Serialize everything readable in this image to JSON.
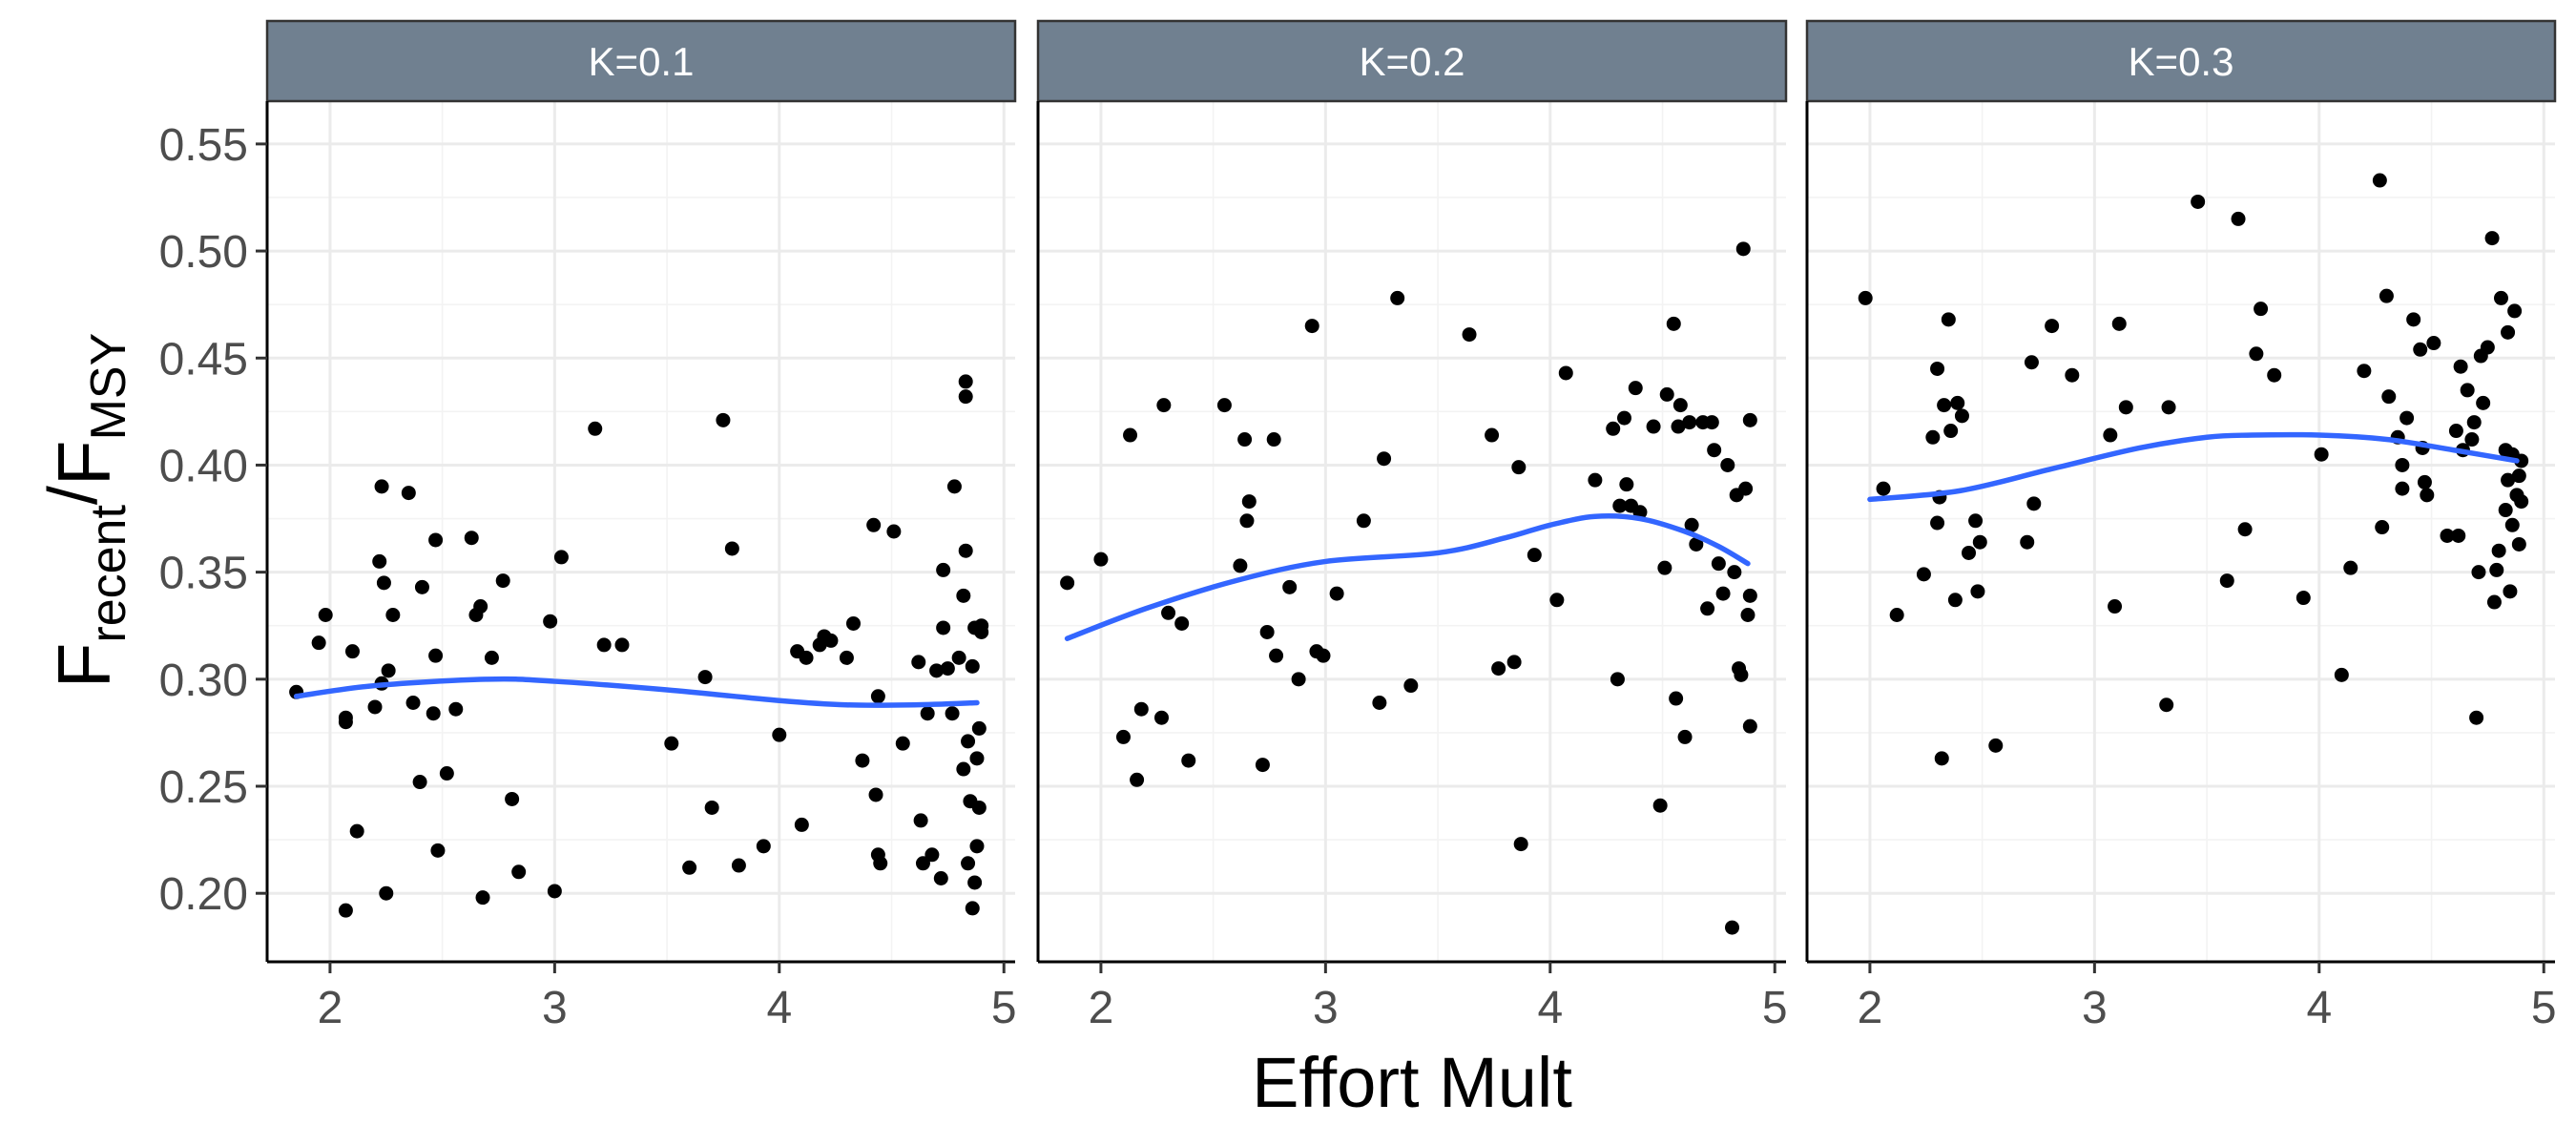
{
  "chart_data": {
    "type": "scatter",
    "xlabel": "Effort Mult",
    "ylabel": {
      "base1": "F",
      "sub1": "recent",
      "slash": "/",
      "base2": "F",
      "sub2": "MSY"
    },
    "xlim": [
      1.72,
      5.05
    ],
    "ylim": [
      0.168,
      0.57
    ],
    "x_ticks": [
      2,
      3,
      4,
      5
    ],
    "y_ticks": [
      0.2,
      0.25,
      0.3,
      0.35,
      0.4,
      0.45,
      0.5,
      0.55
    ],
    "x_tick_labels": [
      "2",
      "3",
      "4",
      "5"
    ],
    "y_tick_labels": [
      "0.20",
      "0.25",
      "0.30",
      "0.35",
      "0.40",
      "0.45",
      "0.50",
      "0.55"
    ],
    "colors": {
      "point": "#000000",
      "smooth": "#3366ff",
      "strip": "#708090",
      "grid": "#ebebeb"
    },
    "panels": [
      {
        "label": "K=0.1",
        "smooth": {
          "x": [
            1.85,
            2.2,
            2.7,
            3.0,
            3.5,
            4.0,
            4.3,
            4.6,
            4.88
          ],
          "y": [
            0.292,
            0.297,
            0.3,
            0.299,
            0.295,
            0.29,
            0.288,
            0.288,
            0.289
          ]
        },
        "points": [
          [
            1.85,
            0.294
          ],
          [
            1.95,
            0.317
          ],
          [
            1.98,
            0.33
          ],
          [
            2.07,
            0.192
          ],
          [
            2.07,
            0.28
          ],
          [
            2.07,
            0.282
          ],
          [
            2.1,
            0.313
          ],
          [
            2.12,
            0.229
          ],
          [
            2.2,
            0.287
          ],
          [
            2.22,
            0.355
          ],
          [
            2.23,
            0.298
          ],
          [
            2.23,
            0.39
          ],
          [
            2.24,
            0.345
          ],
          [
            2.25,
            0.2
          ],
          [
            2.26,
            0.304
          ],
          [
            2.28,
            0.33
          ],
          [
            2.35,
            0.387
          ],
          [
            2.37,
            0.289
          ],
          [
            2.4,
            0.252
          ],
          [
            2.41,
            0.343
          ],
          [
            2.46,
            0.284
          ],
          [
            2.47,
            0.311
          ],
          [
            2.47,
            0.365
          ],
          [
            2.48,
            0.22
          ],
          [
            2.52,
            0.256
          ],
          [
            2.56,
            0.286
          ],
          [
            2.63,
            0.366
          ],
          [
            2.65,
            0.33
          ],
          [
            2.67,
            0.334
          ],
          [
            2.68,
            0.198
          ],
          [
            2.72,
            0.31
          ],
          [
            2.77,
            0.346
          ],
          [
            2.81,
            0.244
          ],
          [
            2.84,
            0.21
          ],
          [
            2.98,
            0.327
          ],
          [
            3.0,
            0.201
          ],
          [
            3.03,
            0.357
          ],
          [
            3.18,
            0.417
          ],
          [
            3.22,
            0.316
          ],
          [
            3.3,
            0.316
          ],
          [
            3.52,
            0.27
          ],
          [
            3.6,
            0.212
          ],
          [
            3.67,
            0.301
          ],
          [
            3.7,
            0.24
          ],
          [
            3.75,
            0.421
          ],
          [
            3.79,
            0.361
          ],
          [
            3.82,
            0.213
          ],
          [
            3.93,
            0.222
          ],
          [
            4.0,
            0.274
          ],
          [
            4.08,
            0.313
          ],
          [
            4.1,
            0.232
          ],
          [
            4.12,
            0.31
          ],
          [
            4.18,
            0.316
          ],
          [
            4.2,
            0.32
          ],
          [
            4.23,
            0.318
          ],
          [
            4.3,
            0.31
          ],
          [
            4.33,
            0.326
          ],
          [
            4.37,
            0.262
          ],
          [
            4.42,
            0.372
          ],
          [
            4.43,
            0.246
          ],
          [
            4.44,
            0.218
          ],
          [
            4.44,
            0.292
          ],
          [
            4.45,
            0.214
          ],
          [
            4.51,
            0.369
          ],
          [
            4.55,
            0.27
          ],
          [
            4.62,
            0.308
          ],
          [
            4.63,
            0.234
          ],
          [
            4.64,
            0.214
          ],
          [
            4.66,
            0.284
          ],
          [
            4.68,
            0.218
          ],
          [
            4.7,
            0.304
          ],
          [
            4.72,
            0.207
          ],
          [
            4.73,
            0.351
          ],
          [
            4.73,
            0.324
          ],
          [
            4.75,
            0.305
          ],
          [
            4.77,
            0.284
          ],
          [
            4.78,
            0.39
          ],
          [
            4.8,
            0.31
          ],
          [
            4.82,
            0.258
          ],
          [
            4.82,
            0.339
          ],
          [
            4.83,
            0.432
          ],
          [
            4.83,
            0.439
          ],
          [
            4.83,
            0.36
          ],
          [
            4.84,
            0.214
          ],
          [
            4.84,
            0.271
          ],
          [
            4.85,
            0.243
          ],
          [
            4.86,
            0.193
          ],
          [
            4.86,
            0.306
          ],
          [
            4.87,
            0.324
          ],
          [
            4.87,
            0.205
          ],
          [
            4.88,
            0.222
          ],
          [
            4.88,
            0.263
          ],
          [
            4.89,
            0.277
          ],
          [
            4.89,
            0.24
          ],
          [
            4.9,
            0.325
          ],
          [
            4.9,
            0.322
          ]
        ]
      },
      {
        "label": "K=0.2",
        "smooth": {
          "x": [
            1.85,
            2.2,
            2.6,
            3.0,
            3.5,
            3.8,
            4.0,
            4.2,
            4.4,
            4.6,
            4.75,
            4.88
          ],
          "y": [
            0.319,
            0.333,
            0.346,
            0.355,
            0.359,
            0.366,
            0.372,
            0.376,
            0.375,
            0.369,
            0.362,
            0.354
          ]
        },
        "points": [
          [
            1.85,
            0.345
          ],
          [
            2.0,
            0.356
          ],
          [
            2.1,
            0.273
          ],
          [
            2.13,
            0.414
          ],
          [
            2.16,
            0.253
          ],
          [
            2.18,
            0.286
          ],
          [
            2.27,
            0.282
          ],
          [
            2.28,
            0.428
          ],
          [
            2.3,
            0.331
          ],
          [
            2.36,
            0.326
          ],
          [
            2.39,
            0.262
          ],
          [
            2.55,
            0.428
          ],
          [
            2.62,
            0.353
          ],
          [
            2.64,
            0.412
          ],
          [
            2.65,
            0.374
          ],
          [
            2.66,
            0.383
          ],
          [
            2.72,
            0.26
          ],
          [
            2.74,
            0.322
          ],
          [
            2.77,
            0.412
          ],
          [
            2.78,
            0.311
          ],
          [
            2.84,
            0.343
          ],
          [
            2.88,
            0.3
          ],
          [
            2.94,
            0.465
          ],
          [
            2.96,
            0.313
          ],
          [
            2.99,
            0.311
          ],
          [
            3.05,
            0.34
          ],
          [
            3.17,
            0.374
          ],
          [
            3.24,
            0.289
          ],
          [
            3.26,
            0.403
          ],
          [
            3.32,
            0.478
          ],
          [
            3.38,
            0.297
          ],
          [
            3.64,
            0.461
          ],
          [
            3.74,
            0.414
          ],
          [
            3.77,
            0.305
          ],
          [
            3.84,
            0.308
          ],
          [
            3.86,
            0.399
          ],
          [
            3.87,
            0.223
          ],
          [
            3.93,
            0.358
          ],
          [
            4.03,
            0.337
          ],
          [
            4.07,
            0.443
          ],
          [
            4.2,
            0.393
          ],
          [
            4.28,
            0.417
          ],
          [
            4.3,
            0.3
          ],
          [
            4.31,
            0.381
          ],
          [
            4.33,
            0.422
          ],
          [
            4.34,
            0.391
          ],
          [
            4.36,
            0.381
          ],
          [
            4.38,
            0.436
          ],
          [
            4.4,
            0.378
          ],
          [
            4.46,
            0.418
          ],
          [
            4.49,
            0.241
          ],
          [
            4.51,
            0.352
          ],
          [
            4.52,
            0.433
          ],
          [
            4.55,
            0.466
          ],
          [
            4.56,
            0.291
          ],
          [
            4.57,
            0.418
          ],
          [
            4.58,
            0.428
          ],
          [
            4.6,
            0.273
          ],
          [
            4.62,
            0.42
          ],
          [
            4.63,
            0.372
          ],
          [
            4.65,
            0.363
          ],
          [
            4.68,
            0.42
          ],
          [
            4.7,
            0.333
          ],
          [
            4.72,
            0.42
          ],
          [
            4.73,
            0.407
          ],
          [
            4.75,
            0.354
          ],
          [
            4.77,
            0.34
          ],
          [
            4.79,
            0.4
          ],
          [
            4.81,
            0.184
          ],
          [
            4.82,
            0.35
          ],
          [
            4.83,
            0.386
          ],
          [
            4.84,
            0.305
          ],
          [
            4.85,
            0.302
          ],
          [
            4.86,
            0.501
          ],
          [
            4.87,
            0.389
          ],
          [
            4.88,
            0.33
          ],
          [
            4.89,
            0.278
          ],
          [
            4.89,
            0.421
          ],
          [
            4.89,
            0.339
          ]
        ]
      },
      {
        "label": "K=0.3",
        "smooth": {
          "x": [
            2.0,
            2.4,
            2.8,
            3.2,
            3.5,
            3.7,
            4.0,
            4.3,
            4.6,
            4.88
          ],
          "y": [
            0.384,
            0.388,
            0.398,
            0.408,
            0.413,
            0.414,
            0.414,
            0.412,
            0.407,
            0.402
          ]
        },
        "points": [
          [
            1.98,
            0.478
          ],
          [
            2.06,
            0.389
          ],
          [
            2.12,
            0.33
          ],
          [
            2.24,
            0.349
          ],
          [
            2.28,
            0.413
          ],
          [
            2.3,
            0.445
          ],
          [
            2.3,
            0.373
          ],
          [
            2.31,
            0.385
          ],
          [
            2.32,
            0.263
          ],
          [
            2.33,
            0.428
          ],
          [
            2.35,
            0.468
          ],
          [
            2.36,
            0.416
          ],
          [
            2.38,
            0.337
          ],
          [
            2.39,
            0.429
          ],
          [
            2.41,
            0.423
          ],
          [
            2.44,
            0.359
          ],
          [
            2.47,
            0.374
          ],
          [
            2.48,
            0.341
          ],
          [
            2.49,
            0.364
          ],
          [
            2.56,
            0.269
          ],
          [
            2.7,
            0.364
          ],
          [
            2.72,
            0.448
          ],
          [
            2.73,
            0.382
          ],
          [
            2.81,
            0.465
          ],
          [
            2.9,
            0.442
          ],
          [
            3.07,
            0.414
          ],
          [
            3.09,
            0.334
          ],
          [
            3.11,
            0.466
          ],
          [
            3.14,
            0.427
          ],
          [
            3.32,
            0.288
          ],
          [
            3.33,
            0.427
          ],
          [
            3.46,
            0.523
          ],
          [
            3.59,
            0.346
          ],
          [
            3.64,
            0.515
          ],
          [
            3.67,
            0.37
          ],
          [
            3.72,
            0.452
          ],
          [
            3.74,
            0.473
          ],
          [
            3.8,
            0.442
          ],
          [
            3.93,
            0.338
          ],
          [
            4.01,
            0.405
          ],
          [
            4.1,
            0.302
          ],
          [
            4.14,
            0.352
          ],
          [
            4.2,
            0.444
          ],
          [
            4.27,
            0.533
          ],
          [
            4.28,
            0.371
          ],
          [
            4.3,
            0.479
          ],
          [
            4.31,
            0.432
          ],
          [
            4.35,
            0.413
          ],
          [
            4.37,
            0.389
          ],
          [
            4.37,
            0.4
          ],
          [
            4.39,
            0.422
          ],
          [
            4.42,
            0.468
          ],
          [
            4.45,
            0.454
          ],
          [
            4.46,
            0.408
          ],
          [
            4.47,
            0.392
          ],
          [
            4.48,
            0.386
          ],
          [
            4.51,
            0.457
          ],
          [
            4.57,
            0.367
          ],
          [
            4.61,
            0.416
          ],
          [
            4.62,
            0.367
          ],
          [
            4.63,
            0.446
          ],
          [
            4.64,
            0.407
          ],
          [
            4.66,
            0.435
          ],
          [
            4.68,
            0.412
          ],
          [
            4.69,
            0.42
          ],
          [
            4.7,
            0.282
          ],
          [
            4.71,
            0.35
          ],
          [
            4.72,
            0.451
          ],
          [
            4.73,
            0.429
          ],
          [
            4.75,
            0.455
          ],
          [
            4.77,
            0.506
          ],
          [
            4.78,
            0.336
          ],
          [
            4.79,
            0.351
          ],
          [
            4.8,
            0.36
          ],
          [
            4.81,
            0.478
          ],
          [
            4.83,
            0.407
          ],
          [
            4.83,
            0.379
          ],
          [
            4.84,
            0.462
          ],
          [
            4.84,
            0.393
          ],
          [
            4.85,
            0.341
          ],
          [
            4.86,
            0.372
          ],
          [
            4.86,
            0.405
          ],
          [
            4.87,
            0.472
          ],
          [
            4.88,
            0.386
          ],
          [
            4.89,
            0.363
          ],
          [
            4.89,
            0.395
          ],
          [
            4.9,
            0.383
          ],
          [
            4.9,
            0.402
          ]
        ]
      }
    ]
  }
}
